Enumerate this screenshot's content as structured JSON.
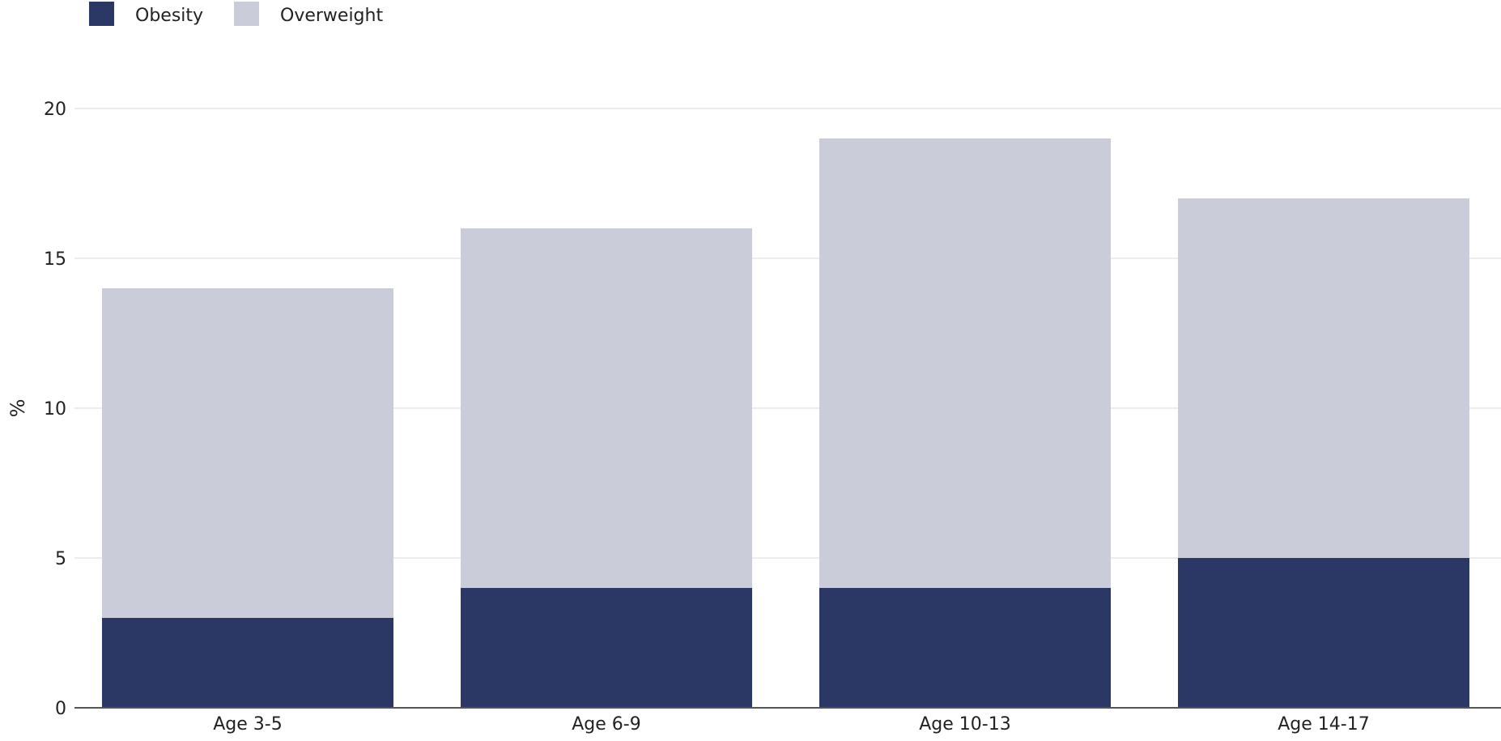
{
  "chart_data": {
    "type": "bar",
    "stacked": true,
    "categories": [
      "Age 3-5",
      "Age 6-9",
      "Age 10-13",
      "Age 14-17"
    ],
    "series": [
      {
        "name": "Obesity",
        "values": [
          3,
          4,
          4,
          5
        ],
        "color": "#2b3764"
      },
      {
        "name": "Overweight",
        "values": [
          11,
          12,
          15,
          12
        ],
        "color": "#cacdd9"
      }
    ],
    "title": "",
    "xlabel": "",
    "ylabel": "%",
    "ylim": [
      0,
      20
    ],
    "yticks": [
      0,
      5,
      10,
      15,
      20
    ],
    "grid": true,
    "legend_position": "top-left",
    "gridline_color": "#e6e6e6",
    "axis_line_color": "#555555"
  }
}
